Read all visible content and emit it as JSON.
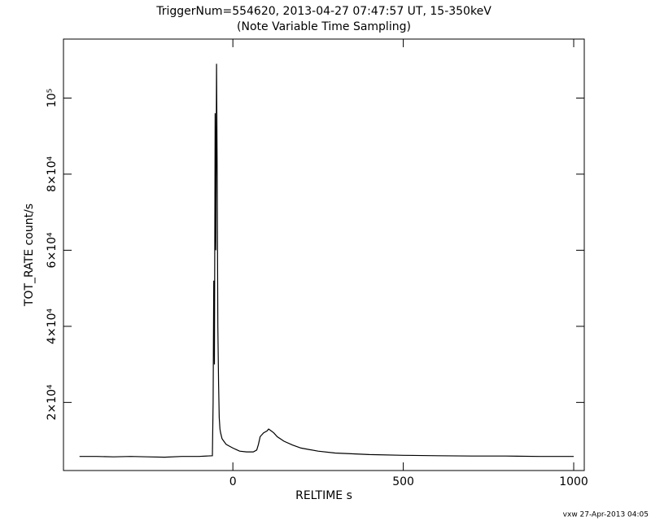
{
  "chart_data": {
    "type": "line",
    "title": "TriggerNum=554620, 2013-04-27 07:47:57 UT, 15-350keV",
    "subtitle": "(Note Variable Time Sampling)",
    "x_label": "RELTIME  s",
    "y_label": "TOT_RATE  count/s",
    "footer": "vxw 27-Apr-2013 04:05",
    "x": [
      -450,
      -400,
      -350,
      -300,
      -250,
      -200,
      -150,
      -100,
      -60,
      -58,
      -56,
      -54,
      -52,
      -50,
      -48,
      -46,
      -44,
      -42,
      -40,
      -38,
      -36,
      -32,
      -28,
      -24,
      -20,
      -10,
      0,
      10,
      20,
      40,
      60,
      70,
      75,
      80,
      90,
      100,
      105,
      110,
      120,
      130,
      150,
      175,
      200,
      250,
      300,
      400,
      500,
      600,
      700,
      800,
      900,
      1000
    ],
    "series": [
      {
        "name": "TOT_RATE",
        "color": "#000000",
        "values": [
          5800,
          5800,
          5700,
          5800,
          5700,
          5600,
          5800,
          5800,
          6000,
          20000,
          52000,
          30000,
          96000,
          60000,
          109000,
          80000,
          40000,
          25000,
          16000,
          13000,
          12000,
          10500,
          10000,
          9500,
          9000,
          8500,
          8000,
          7600,
          7200,
          7000,
          7000,
          7500,
          9000,
          11000,
          12000,
          12500,
          13000,
          12700,
          12000,
          11000,
          9800,
          8800,
          8000,
          7200,
          6700,
          6300,
          6100,
          6000,
          5900,
          5900,
          5800,
          5800
        ]
      }
    ],
    "xlim": [
      -497,
      1031
    ],
    "ylim": [
      2100,
      115500
    ],
    "xticks": [
      0,
      500,
      1000
    ],
    "yticks": [
      {
        "value": 20000,
        "label": "2×10⁴"
      },
      {
        "value": 40000,
        "label": "4×10⁴"
      },
      {
        "value": 60000,
        "label": "6×10⁴"
      },
      {
        "value": 80000,
        "label": "8×10⁴"
      },
      {
        "value": 100000,
        "label": "10⁵"
      }
    ]
  }
}
